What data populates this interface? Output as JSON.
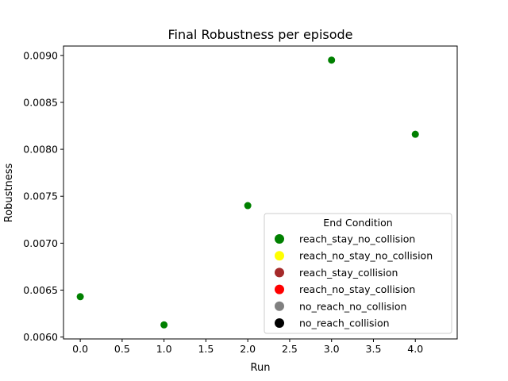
{
  "chart_data": {
    "type": "scatter",
    "title": "Final Robustness per episode",
    "xlabel": "Run",
    "ylabel": "Robustness",
    "xlim": [
      -0.2,
      4.5
    ],
    "ylim": [
      0.00598,
      0.0091
    ],
    "xticks": [
      0.0,
      0.5,
      1.0,
      1.5,
      2.0,
      2.5,
      3.0,
      3.5,
      4.0
    ],
    "xtick_labels": [
      "0.0",
      "0.5",
      "1.0",
      "1.5",
      "2.0",
      "2.5",
      "3.0",
      "3.5",
      "4.0"
    ],
    "yticks": [
      0.006,
      0.0065,
      0.007,
      0.0075,
      0.008,
      0.0085,
      0.009
    ],
    "ytick_labels": [
      "0.0060",
      "0.0065",
      "0.0070",
      "0.0075",
      "0.0080",
      "0.0085",
      "0.0090"
    ],
    "grid": false,
    "points": [
      {
        "x": 0,
        "y": 0.00643,
        "condition": "reach_stay_no_collision"
      },
      {
        "x": 1,
        "y": 0.00613,
        "condition": "reach_stay_no_collision"
      },
      {
        "x": 2,
        "y": 0.0074,
        "condition": "reach_stay_no_collision"
      },
      {
        "x": 3,
        "y": 0.00895,
        "condition": "reach_stay_no_collision"
      },
      {
        "x": 4,
        "y": 0.00816,
        "condition": "reach_stay_no_collision"
      }
    ],
    "legend": {
      "title": "End Condition",
      "placement": "lower-right",
      "entries": [
        {
          "label": "reach_stay_no_collision",
          "color": "#008000"
        },
        {
          "label": "reach_no_stay_no_collision",
          "color": "#ffff00"
        },
        {
          "label": "reach_stay_collision",
          "color": "#a52a2a"
        },
        {
          "label": "reach_no_stay_collision",
          "color": "#ff0000"
        },
        {
          "label": "no_reach_no_collision",
          "color": "#808080"
        },
        {
          "label": "no_reach_collision",
          "color": "#000000"
        }
      ]
    }
  }
}
